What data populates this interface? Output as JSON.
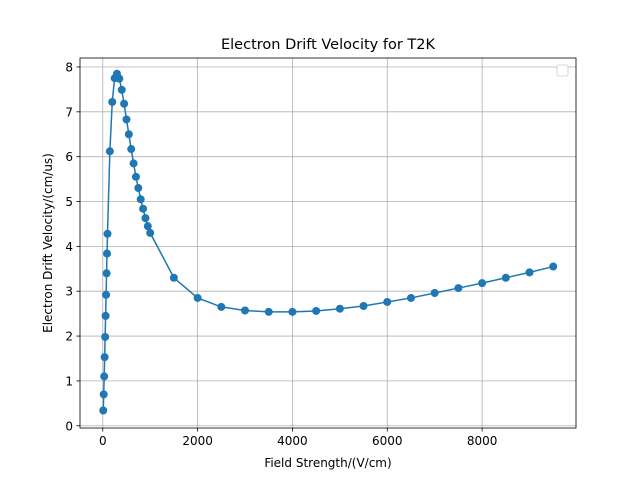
{
  "chart_data": {
    "type": "line",
    "title": "Electron Drift Velocity for T2K",
    "xlabel": "Field Strength/(V/cm)",
    "ylabel": "Electron Drift Velocity/(cm/us)",
    "xlim": [
      -480,
      9980
    ],
    "ylim": [
      -0.05,
      8.2
    ],
    "x_ticks": [
      0,
      2000,
      4000,
      6000,
      8000
    ],
    "y_ticks": [
      0,
      1,
      2,
      3,
      4,
      5,
      6,
      7,
      8
    ],
    "grid": true,
    "legend": "top-right",
    "color": "#1f77b4",
    "series": [
      {
        "x": [
          10,
          20,
          30,
          40,
          50,
          60,
          70,
          80,
          90,
          100,
          150,
          200,
          250,
          300,
          350,
          400,
          450,
          500,
          550,
          600,
          650,
          700,
          750,
          800,
          850,
          900,
          950,
          1000,
          1500,
          2000,
          2500,
          3000,
          3500,
          4000,
          4500,
          5000,
          5500,
          6000,
          6500,
          7000,
          7500,
          8000,
          8500,
          9000,
          9500
        ],
        "y": [
          0.34,
          0.7,
          1.1,
          1.53,
          1.98,
          2.45,
          2.92,
          3.4,
          3.84,
          4.28,
          6.12,
          7.22,
          7.75,
          7.85,
          7.74,
          7.49,
          7.18,
          6.83,
          6.5,
          6.17,
          5.85,
          5.55,
          5.3,
          5.05,
          4.84,
          4.63,
          4.45,
          4.3,
          3.3,
          2.85,
          2.65,
          2.57,
          2.54,
          2.54,
          2.56,
          2.61,
          2.67,
          2.76,
          2.85,
          2.96,
          3.07,
          3.18,
          3.3,
          3.42,
          3.55
        ]
      }
    ]
  }
}
